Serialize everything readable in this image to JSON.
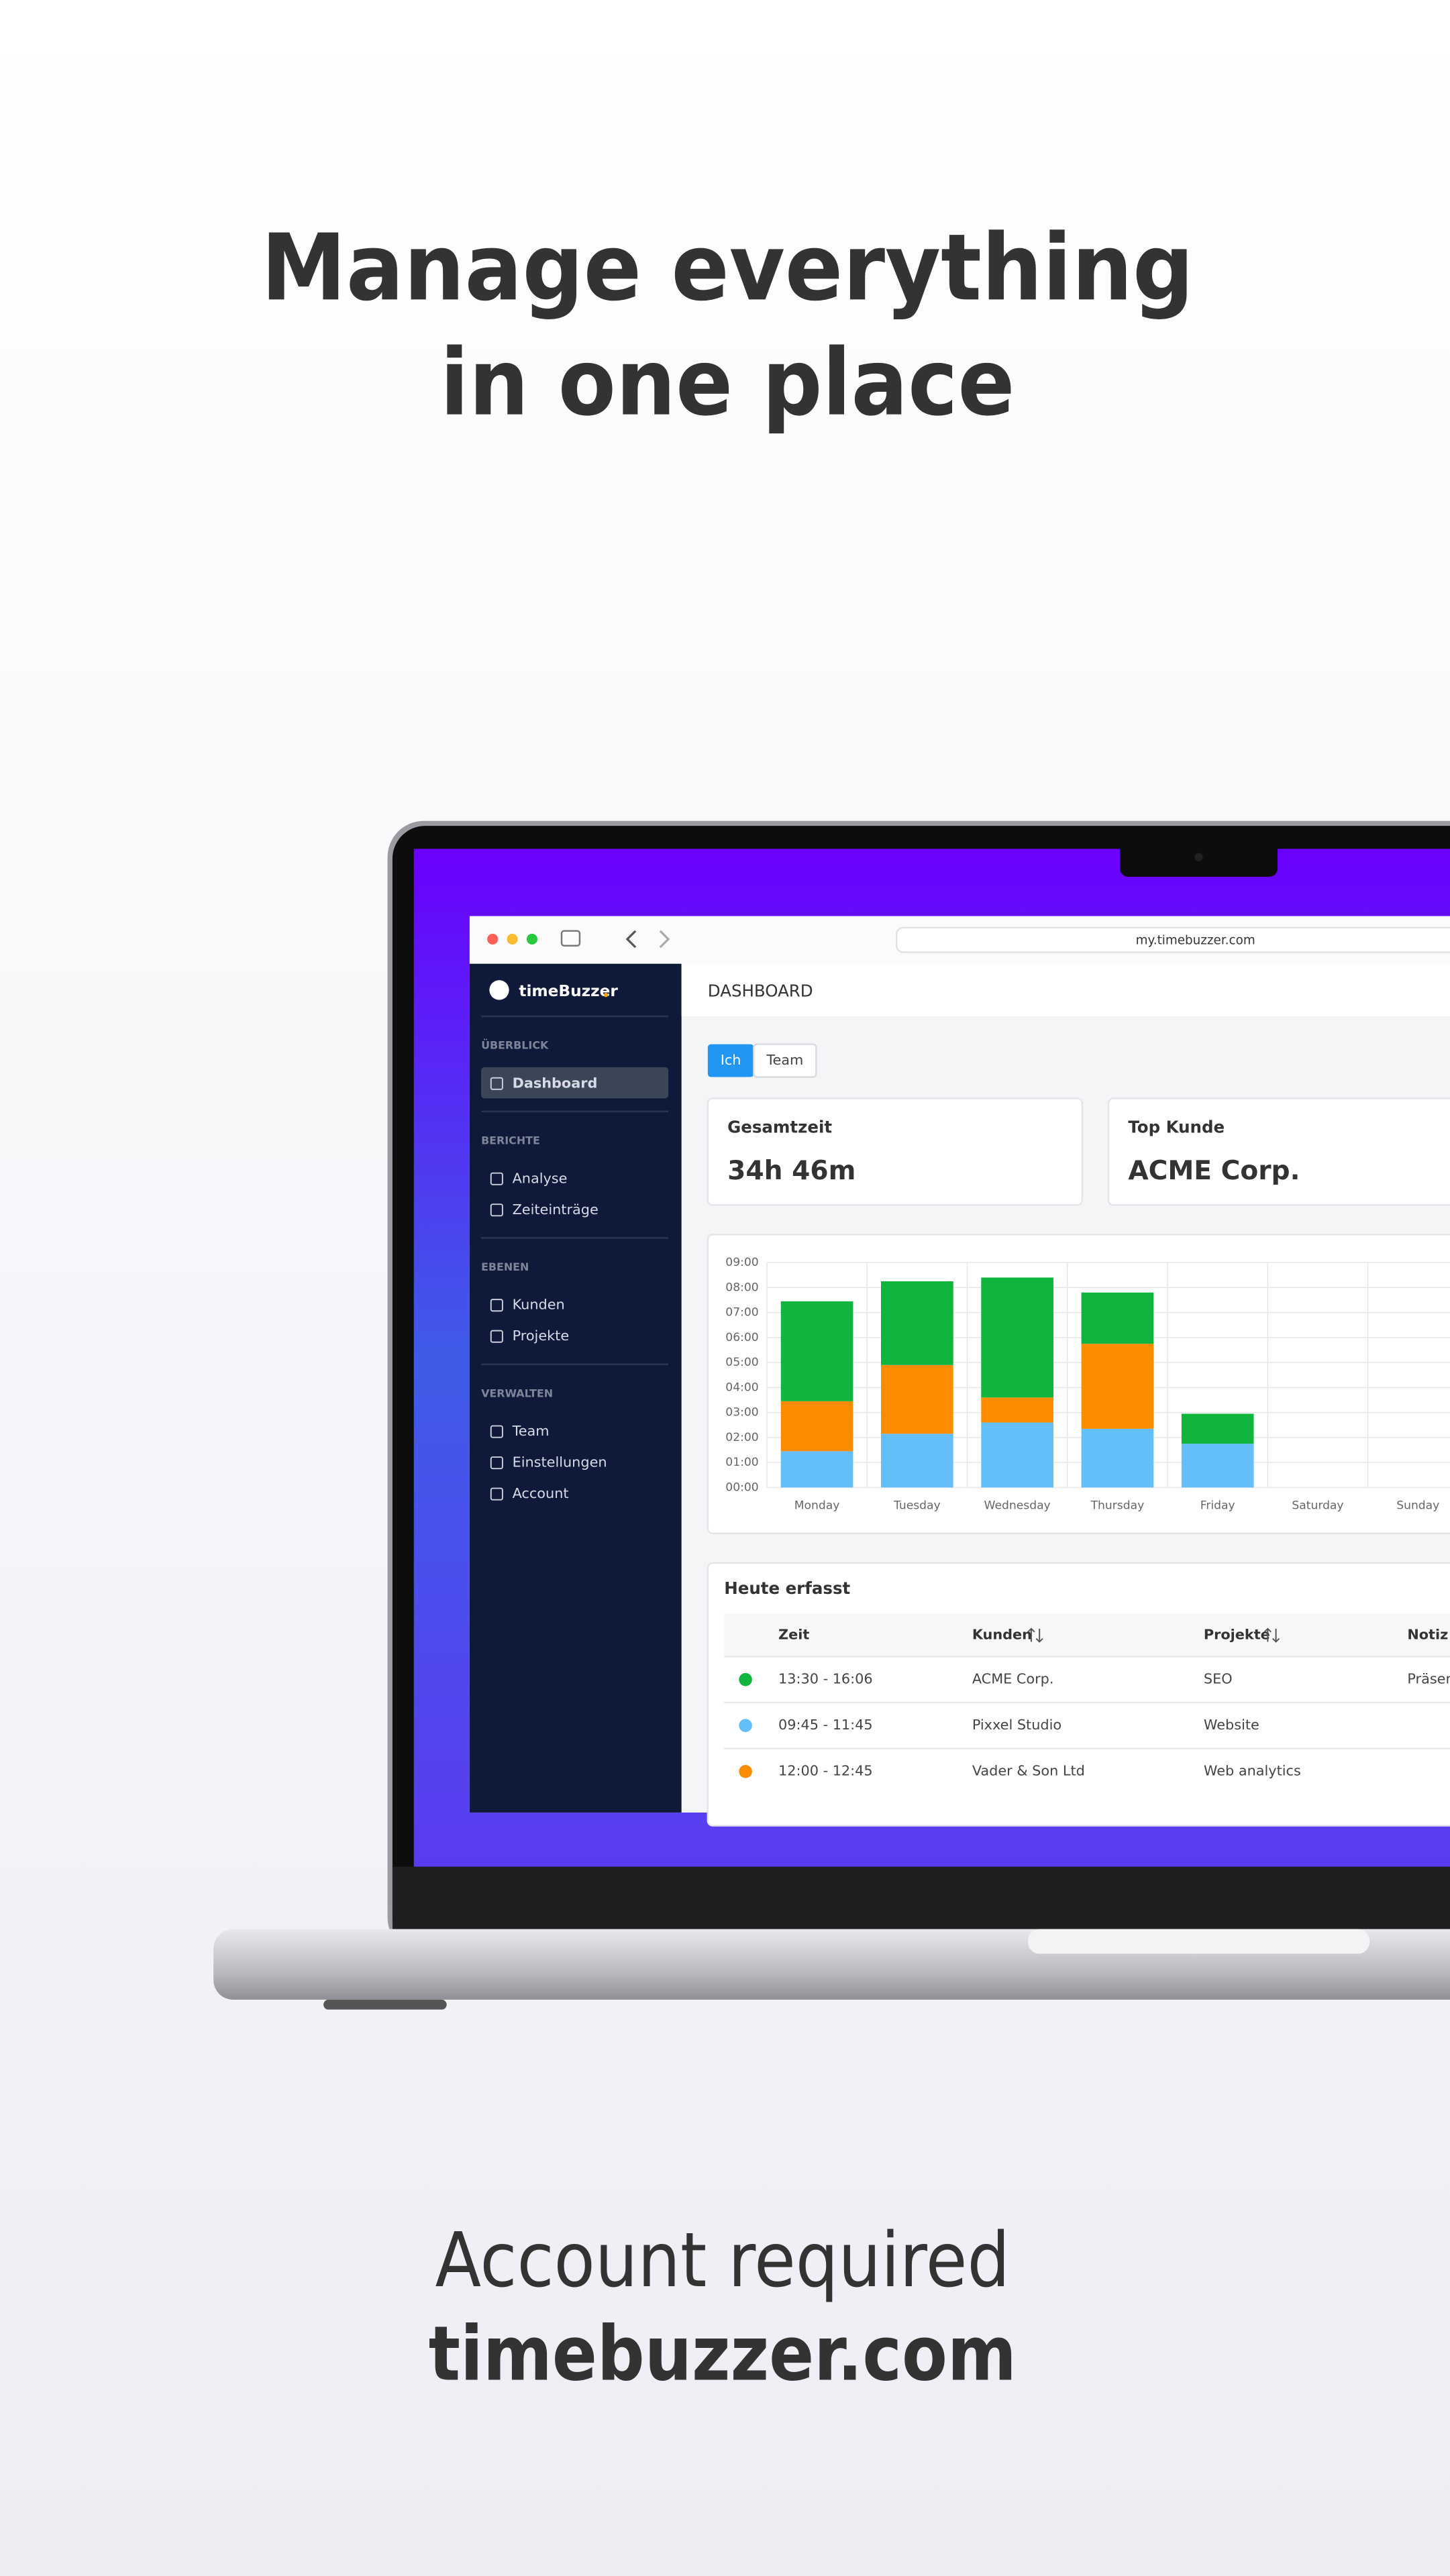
{
  "headline": {
    "line1": "Manage everything",
    "line2": "in one place"
  },
  "browser": {
    "url": "my.timebuzzer.com"
  },
  "sidebar": {
    "logo": "timeBuzzer",
    "active": "Dashboard",
    "sections": [
      {
        "title": "ÜBERBLICK",
        "items": [
          "Dashboard"
        ]
      },
      {
        "title": "BERICHTE",
        "items": [
          "Analyse",
          "Zeiteinträge"
        ]
      },
      {
        "title": "EBENEN",
        "items": [
          "Kunden",
          "Projekte"
        ]
      },
      {
        "title": "VERWALTEN",
        "items": [
          "Team",
          "Einstellungen",
          "Account"
        ]
      }
    ]
  },
  "dashboard": {
    "header": "DASHBOARD",
    "toggle": [
      "Ich",
      "Team"
    ],
    "cards": [
      {
        "label": "Gesamtzeit",
        "value": "34h 46m"
      },
      {
        "label": "Top Kunde",
        "value": "ACME Corp."
      }
    ],
    "chart": {
      "type": "bar",
      "stacked": true,
      "categories": [
        "Monday",
        "Tuesday",
        "Wednesday",
        "Thursday",
        "Friday",
        "Saturday",
        "Sunday"
      ],
      "series": [
        {
          "color": "#64bff8",
          "values": [
            1.45,
            2.15,
            2.6,
            2.35,
            1.75,
            0,
            0
          ]
        },
        {
          "color": "#fb8c00",
          "values": [
            2.0,
            2.75,
            1.0,
            3.4,
            0,
            0,
            0
          ]
        },
        {
          "color": "#10b53d",
          "values": [
            4.0,
            3.35,
            4.8,
            2.05,
            1.2,
            0,
            0
          ]
        }
      ],
      "ylim": [
        0,
        9
      ],
      "yticks": [
        {
          "value": 0,
          "label": "00:00"
        },
        {
          "value": 1,
          "label": "01:00"
        },
        {
          "value": 2,
          "label": "02:00"
        },
        {
          "value": 3,
          "label": "03:00"
        },
        {
          "value": 4,
          "label": "04:00"
        },
        {
          "value": 5,
          "label": "05:00"
        },
        {
          "value": 6,
          "label": "06:00"
        },
        {
          "value": 7,
          "label": "07:00"
        },
        {
          "value": 8,
          "label": "08:00"
        },
        {
          "value": 9,
          "label": "09:00"
        }
      ],
      "grid": true
    },
    "table": {
      "title": "Heute erfasst",
      "columns": [
        "Zeit",
        "Kunden",
        "Projekte",
        "Notiz"
      ],
      "rows": [
        {
          "dot": "#10b53d",
          "cells": [
            "13:30 - 16:06",
            "ACME Corp.",
            "SEO",
            "Präsentation"
          ]
        },
        {
          "dot": "#64bff8",
          "cells": [
            "09:45 - 11:45",
            "Pixxel Studio",
            "Website",
            ""
          ]
        },
        {
          "dot": "#fb8c00",
          "cells": [
            "12:00 - 12:45",
            "Vader & Son Ltd",
            "Web analytics",
            ""
          ]
        }
      ]
    }
  },
  "footer": {
    "line1": "Account required",
    "line2": "timebuzzer.com"
  }
}
